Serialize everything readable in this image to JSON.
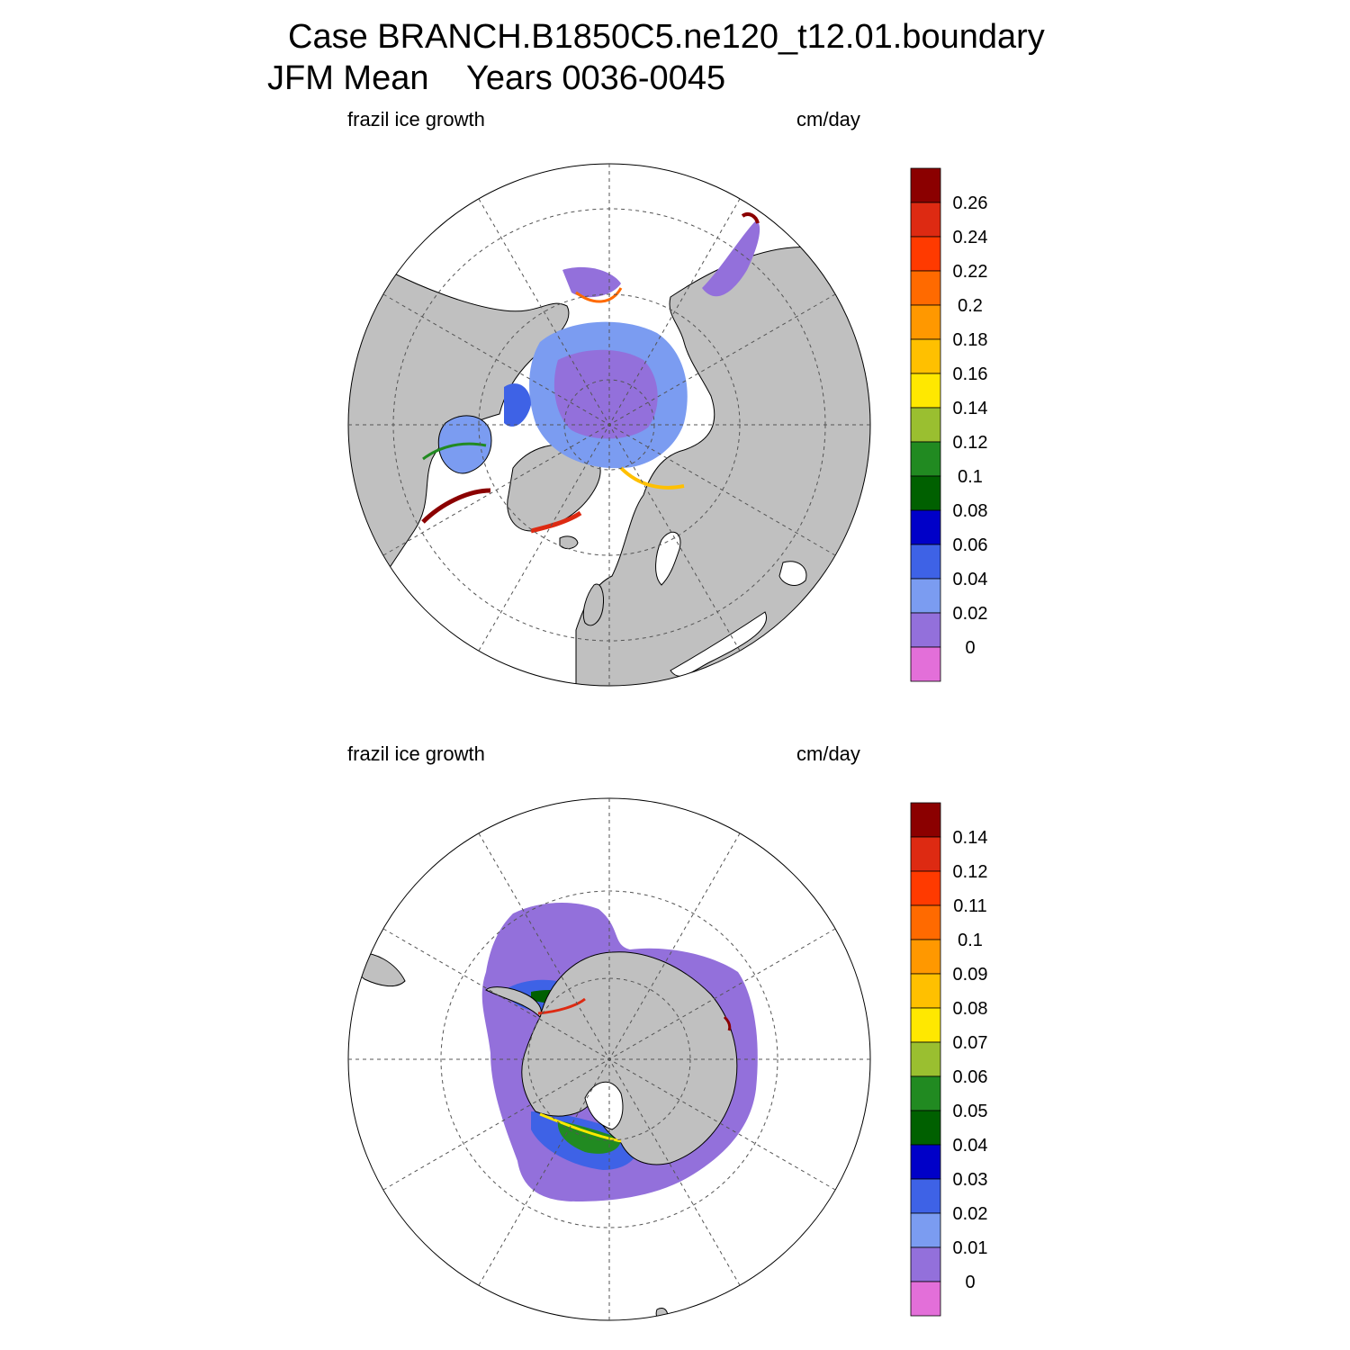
{
  "title": {
    "line1": "Case BRANCH.B1850C5.ne120_t12.01.boundary",
    "season": "JFM Mean",
    "years": "Years 0036-0045"
  },
  "panels": [
    {
      "name": "north-polar-panel",
      "left_label": "frazil ice growth",
      "right_label": "cm/day",
      "colorbar_labels": [
        "0.26",
        "0.24",
        "0.22",
        "0.2",
        "0.18",
        "0.16",
        "0.14",
        "0.12",
        "0.1",
        "0.08",
        "0.06",
        "0.04",
        "0.02",
        "0"
      ]
    },
    {
      "name": "south-polar-panel",
      "left_label": "frazil ice growth",
      "right_label": "cm/day",
      "colorbar_labels": [
        "0.14",
        "0.12",
        "0.11",
        "0.1",
        "0.09",
        "0.08",
        "0.07",
        "0.06",
        "0.05",
        "0.04",
        "0.03",
        "0.02",
        "0.01",
        "0"
      ]
    }
  ],
  "colorbar_colors": [
    "#8b0000",
    "#dd2a12",
    "#ff3a00",
    "#ff6a00",
    "#ff9800",
    "#ffc000",
    "#ffe800",
    "#9abf30",
    "#218a21",
    "#006000",
    "#0000c8",
    "#3e62e6",
    "#7b9cf1",
    "#9370db",
    "#e36fd9"
  ],
  "land_color": "#c0c0c0"
}
